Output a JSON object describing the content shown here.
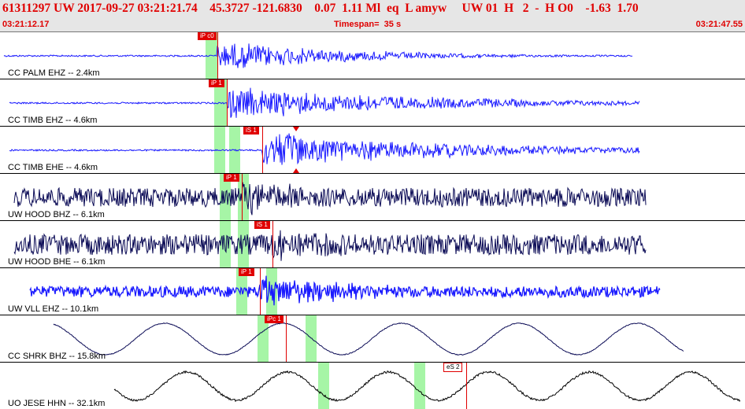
{
  "header": {
    "title": "61311297 UW 2017-09-27 03:21:21.74    45.3727 -121.6830    0.07  1.11 Ml  eq  L amyw     UW 01  H   2  -  H O0    -1.63  1.70",
    "start_time": "03:21:12.17",
    "timespan": "Timespan=  35 s",
    "end_time": "03:21:47.55"
  },
  "colors": {
    "blue_trace": "#1a1aff",
    "navy_trace": "#0a0a55",
    "black_trace": "#000000",
    "pick_red": "#e00000",
    "window_green": "#a6f5a6"
  },
  "stations": [
    {
      "label": "CC PALM EHZ -- 2.4km",
      "picks": [
        {
          "text": "iP c0"
        }
      ],
      "markers": []
    },
    {
      "label": "CC TIMB EHZ -- 4.6km",
      "picks": [
        {
          "text": "iP 1"
        }
      ],
      "markers": []
    },
    {
      "label": "CC TIMB EHE -- 4.6km",
      "picks": [
        {
          "text": "iS 1"
        }
      ],
      "markers": [
        "red-triangle"
      ]
    },
    {
      "label": "UW HOOD BHZ -- 6.1km",
      "picks": [
        {
          "text": "iP 1"
        }
      ],
      "markers": []
    },
    {
      "label": "UW HOOD BHE -- 6.1km",
      "picks": [
        {
          "text": "iS 1"
        }
      ],
      "markers": []
    },
    {
      "label": "UW VLL EHZ -- 10.1km",
      "picks": [
        {
          "text": "iP 1"
        }
      ],
      "markers": []
    },
    {
      "label": "CC SHRK BHZ -- 15.8km",
      "picks": [
        {
          "text": "iPc 1"
        }
      ],
      "markers": []
    },
    {
      "label": "UO JESE HHN -- 32.1km",
      "picks": [
        {
          "text": "eS 2"
        }
      ],
      "markers": []
    }
  ]
}
